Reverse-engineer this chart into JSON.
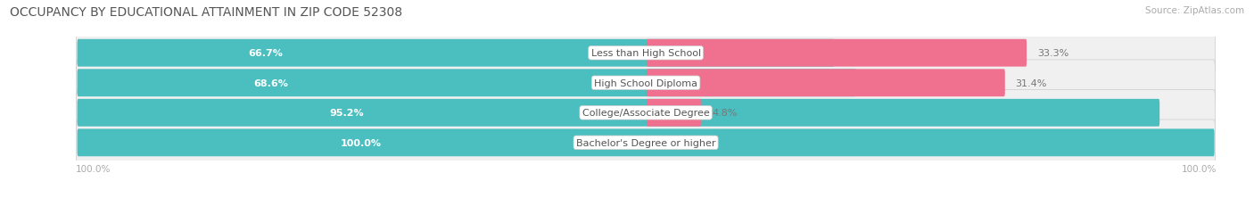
{
  "title": "OCCUPANCY BY EDUCATIONAL ATTAINMENT IN ZIP CODE 52308",
  "source": "Source: ZipAtlas.com",
  "categories": [
    "Less than High School",
    "High School Diploma",
    "College/Associate Degree",
    "Bachelor's Degree or higher"
  ],
  "owner_values": [
    66.7,
    68.6,
    95.2,
    100.0
  ],
  "renter_values": [
    33.3,
    31.4,
    4.8,
    0.0
  ],
  "owner_color": "#4bbfbf",
  "renter_color": "#f07090",
  "row_bg_color": "#e8e8e8",
  "row_inner_color": "#f5f5f5",
  "title_fontsize": 10,
  "label_fontsize": 8.5,
  "value_fontsize": 8.0,
  "source_fontsize": 7.5,
  "legend_fontsize": 8.5,
  "axis_label": "100.0%",
  "bar_height": 0.62,
  "figsize": [
    14.06,
    2.32
  ],
  "dpi": 100,
  "xlim_left": -100,
  "xlim_right": 100
}
